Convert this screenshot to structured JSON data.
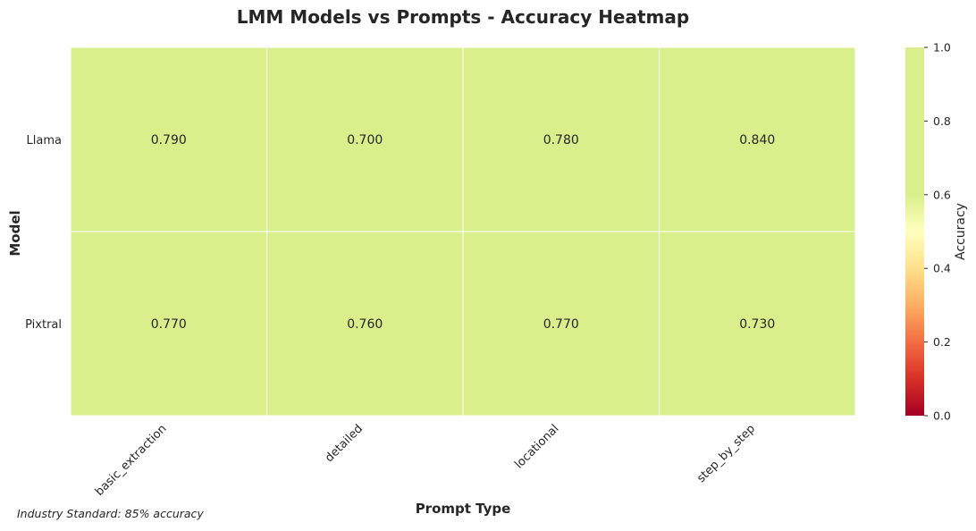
{
  "chart_data": {
    "type": "heatmap",
    "title": "LMM Models vs Prompts - Accuracy Heatmap",
    "xlabel": "Prompt Type",
    "ylabel": "Model",
    "x_categories": [
      "basic_extraction",
      "detailed",
      "locational",
      "step_by_step"
    ],
    "y_categories": [
      "Llama",
      "Pixtral"
    ],
    "values": [
      [
        0.79,
        0.7,
        0.78,
        0.84
      ],
      [
        0.77,
        0.76,
        0.77,
        0.73
      ]
    ],
    "value_labels": [
      [
        "0.790",
        "0.700",
        "0.780",
        "0.840"
      ],
      [
        "0.770",
        "0.760",
        "0.770",
        "0.730"
      ]
    ],
    "colorbar": {
      "label": "Accuracy",
      "range": [
        0.0,
        1.0
      ],
      "ticks": [
        "0.0",
        "0.2",
        "0.4",
        "0.6",
        "0.8",
        "1.0"
      ],
      "colormap": "RdYlGn"
    }
  },
  "footnote": "Industry Standard: 85% accuracy"
}
